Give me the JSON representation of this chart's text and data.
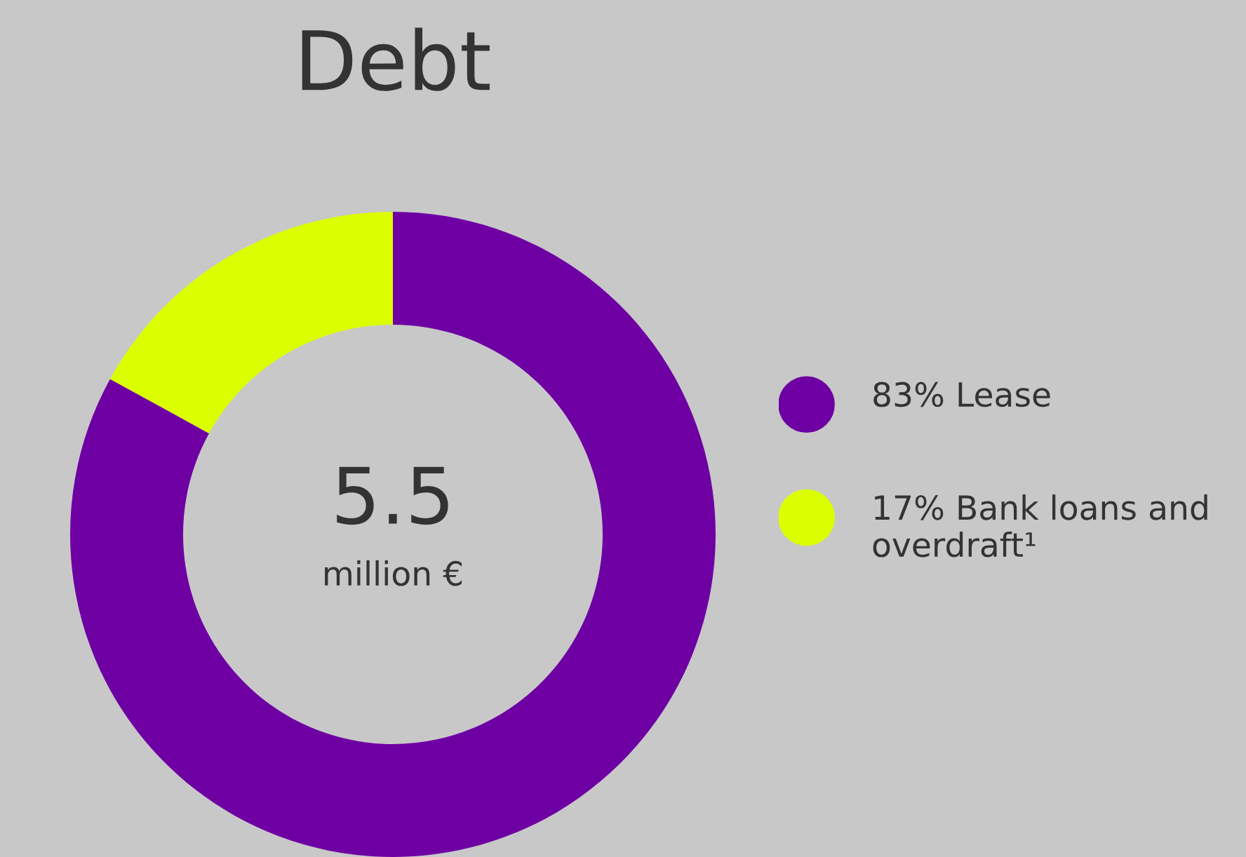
{
  "chart_data": {
    "type": "donut",
    "title": "Debt",
    "categories": [
      "Lease",
      "Bank loans and overdraft¹"
    ],
    "values": [
      83,
      17
    ],
    "value_labels": [
      "83%",
      "17%"
    ],
    "colors": [
      "#6e00a3",
      "#dcff00"
    ],
    "annotations": [
      "5.5",
      "million €"
    ],
    "legend": "right"
  }
}
